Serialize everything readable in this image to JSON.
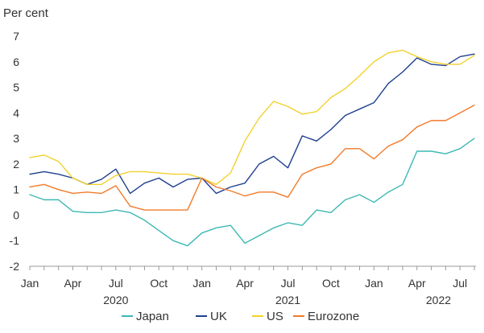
{
  "chart_data": {
    "type": "line",
    "unit_label": "Per cent",
    "ylim": [
      -2,
      7
    ],
    "yticks": [
      -2,
      -1,
      0,
      1,
      2,
      3,
      4,
      5,
      6,
      7
    ],
    "x": [
      "2020-01",
      "2020-02",
      "2020-03",
      "2020-04",
      "2020-05",
      "2020-06",
      "2020-07",
      "2020-08",
      "2020-09",
      "2020-10",
      "2020-11",
      "2020-12",
      "2021-01",
      "2021-02",
      "2021-03",
      "2021-04",
      "2021-05",
      "2021-06",
      "2021-07",
      "2021-08",
      "2021-09",
      "2021-10",
      "2021-11",
      "2021-12",
      "2022-01",
      "2022-02",
      "2022-03",
      "2022-04",
      "2022-05",
      "2022-06",
      "2022-07",
      "2022-08"
    ],
    "xticks": [
      {
        "label": "Jan",
        "index": 0
      },
      {
        "label": "Apr",
        "index": 3
      },
      {
        "label": "Jul",
        "index": 6
      },
      {
        "label": "Oct",
        "index": 9
      },
      {
        "label": "Jan",
        "index": 12
      },
      {
        "label": "Apr",
        "index": 15
      },
      {
        "label": "Jul",
        "index": 18
      },
      {
        "label": "Oct",
        "index": 21
      },
      {
        "label": "Jan",
        "index": 24
      },
      {
        "label": "Apr",
        "index": 27
      },
      {
        "label": "Jul",
        "index": 30
      }
    ],
    "years": [
      {
        "label": "2020",
        "index": 6
      },
      {
        "label": "2021",
        "index": 18
      },
      {
        "label": "2022",
        "index": 28.5
      }
    ],
    "series": [
      {
        "name": "Japan",
        "color": "#3db8b3",
        "values": [
          0.8,
          0.6,
          0.6,
          0.15,
          0.1,
          0.1,
          0.2,
          0.1,
          -0.2,
          -0.6,
          -1.0,
          -1.2,
          -0.7,
          -0.5,
          -0.4,
          -1.1,
          -0.8,
          -0.5,
          -0.3,
          -0.4,
          0.2,
          0.1,
          0.6,
          0.8,
          0.5,
          0.9,
          1.2,
          2.5,
          2.5,
          2.4,
          2.6,
          3.0
        ]
      },
      {
        "name": "UK",
        "color": "#1f3f8f",
        "values": [
          1.6,
          1.7,
          1.6,
          1.45,
          1.2,
          1.4,
          1.8,
          0.85,
          1.25,
          1.45,
          1.1,
          1.4,
          1.45,
          0.85,
          1.1,
          1.25,
          2.0,
          2.3,
          1.85,
          3.1,
          2.9,
          3.35,
          3.9,
          4.15,
          4.4,
          5.15,
          5.6,
          6.15,
          5.9,
          5.85,
          6.2,
          6.3
        ]
      },
      {
        "name": "US",
        "color": "#f2d12e",
        "values": [
          2.25,
          2.35,
          2.1,
          1.45,
          1.2,
          1.2,
          1.55,
          1.7,
          1.7,
          1.65,
          1.6,
          1.6,
          1.45,
          1.2,
          1.65,
          2.9,
          3.8,
          4.45,
          4.25,
          3.95,
          4.05,
          4.6,
          4.95,
          5.45,
          6.0,
          6.35,
          6.45,
          6.2,
          6.0,
          5.9,
          5.9,
          6.25
        ]
      },
      {
        "name": "Eurozone",
        "color": "#f07b2a",
        "values": [
          1.1,
          1.2,
          1.0,
          0.85,
          0.9,
          0.85,
          1.15,
          0.35,
          0.2,
          0.2,
          0.2,
          0.2,
          1.45,
          1.1,
          0.95,
          0.75,
          0.9,
          0.9,
          0.7,
          1.6,
          1.85,
          2.0,
          2.6,
          2.6,
          2.2,
          2.7,
          2.95,
          3.45,
          3.7,
          3.7,
          4.0,
          4.3
        ]
      }
    ],
    "legend": {
      "position": "bottom"
    },
    "grid": false
  }
}
